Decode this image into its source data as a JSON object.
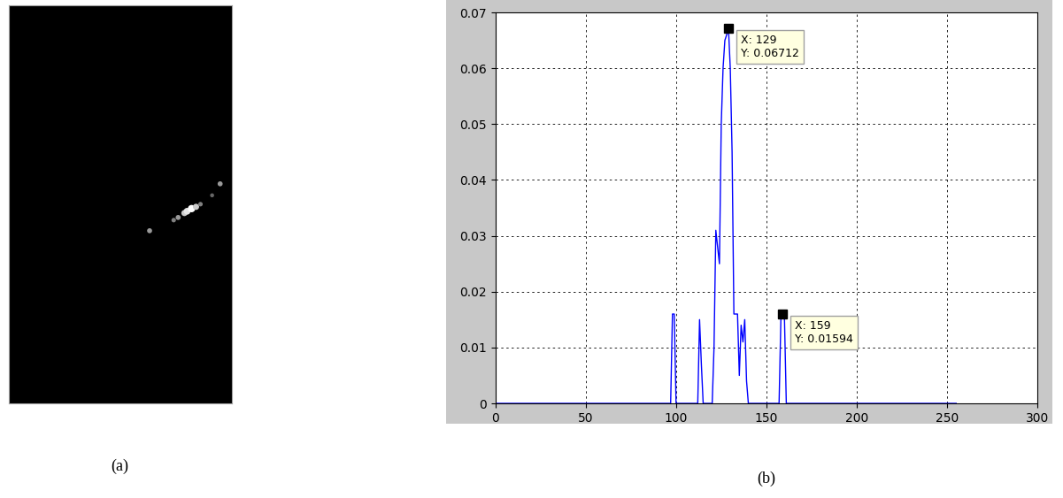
{
  "chart_data": [
    {
      "type": "scatter",
      "xlabel": "(a)",
      "tick_labels": false,
      "color": "#000000",
      "xlim": [
        0,
        250
      ],
      "ylim": [
        450,
        0
      ],
      "x": [
        158,
        185,
        190,
        197,
        200,
        205,
        210,
        215,
        228,
        237
      ],
      "y": [
        255,
        243,
        240,
        235,
        233,
        230,
        228,
        225,
        215,
        202
      ],
      "brightness": [
        0.6,
        0.5,
        0.6,
        0.8,
        0.9,
        1.0,
        0.8,
        0.5,
        0.4,
        0.6
      ]
    },
    {
      "type": "line",
      "xlabel": "(b)",
      "color": "#0000ff",
      "grid": true,
      "xlim": [
        0,
        300
      ],
      "ylim": [
        0,
        0.07
      ],
      "xticks": [
        0,
        50,
        100,
        150,
        200,
        250,
        300
      ],
      "yticks": [
        0,
        0.01,
        0.02,
        0.03,
        0.04,
        0.05,
        0.06,
        0.07
      ],
      "x": [
        0,
        97,
        98,
        99,
        100,
        112,
        113,
        114,
        115,
        120,
        121,
        122,
        123,
        124,
        125,
        126,
        127,
        128,
        129,
        130,
        131,
        132,
        133,
        134,
        135,
        136,
        137,
        138,
        139,
        140,
        156,
        157,
        158,
        159,
        160,
        161,
        255
      ],
      "values": [
        0,
        0,
        0.016,
        0.016,
        0,
        0,
        0.015,
        0.007,
        0,
        0,
        0.01,
        0.031,
        0.028,
        0.025,
        0.05,
        0.06,
        0.065,
        0.066,
        0.06712,
        0.06,
        0.045,
        0.016,
        0.016,
        0.016,
        0.005,
        0.014,
        0.011,
        0.015,
        0.004,
        0,
        0,
        0,
        0.015,
        0.01594,
        0.015,
        0,
        0
      ],
      "annotations": [
        {
          "text": "X: 129\nY: 0.06712",
          "x": 129,
          "y": 0.06712
        },
        {
          "text": "X: 159\nY: 0.01594",
          "x": 159,
          "y": 0.01594
        }
      ]
    }
  ]
}
